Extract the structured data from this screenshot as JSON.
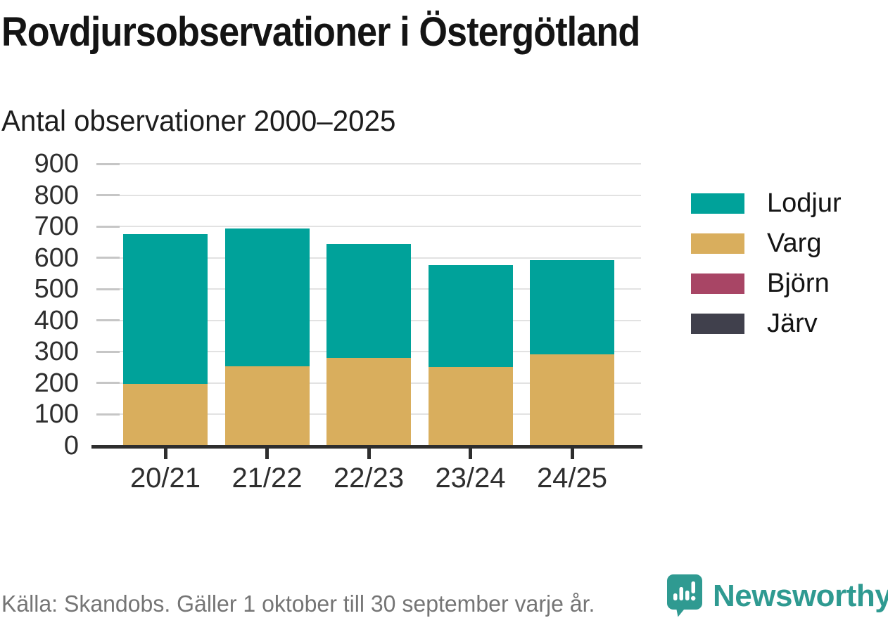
{
  "title": "Rovdjursobservationer i Östergötland",
  "subtitle": "Antal observationer 2000–2025",
  "source": "Källa: Skandobs. Gäller 1 oktober till 30 september varje år.",
  "brand": {
    "name": "Newsworthy",
    "color": "#2f9a91"
  },
  "chart_data": {
    "type": "bar",
    "stacked": true,
    "title": "Rovdjursobservationer i Östergötland",
    "subtitle": "Antal observationer 2000–2025",
    "categories": [
      "20/21",
      "21/22",
      "22/23",
      "23/24",
      "24/25"
    ],
    "series": [
      {
        "name": "Lodjur",
        "color": "#00a29a",
        "values": [
          477,
          440,
          365,
          327,
          300
        ]
      },
      {
        "name": "Varg",
        "color": "#d9ae5d",
        "values": [
          203,
          259,
          284,
          255,
          296
        ]
      },
      {
        "name": "Björn",
        "color": "#a84565",
        "values": [
          0,
          0,
          0,
          0,
          0
        ]
      },
      {
        "name": "Järv",
        "color": "#40404c",
        "values": [
          0,
          0,
          0,
          0,
          0
        ]
      }
    ],
    "totals": [
      680,
      699,
      649,
      582,
      596
    ],
    "xlabel": "",
    "ylabel": "",
    "ylim": [
      0,
      900
    ],
    "yticks": [
      0,
      100,
      200,
      300,
      400,
      500,
      600,
      700,
      800,
      900
    ],
    "grid": true,
    "legend_position": "right"
  }
}
